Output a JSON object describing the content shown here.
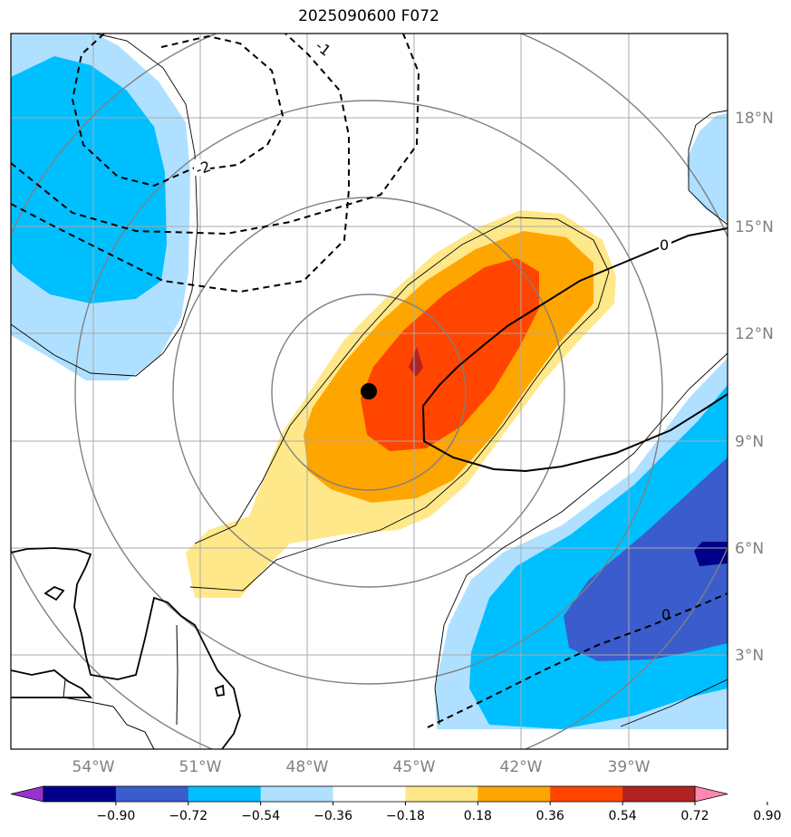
{
  "title": "2025090600 F072",
  "map": {
    "lon_labels": [
      "54°W",
      "51°W",
      "48°W",
      "45°W",
      "42°W",
      "39°W"
    ],
    "lat_labels": [
      "18°N",
      "15°N",
      "12°N",
      "9°N",
      "6°N",
      "3°N"
    ],
    "contour_labels": [
      "-1",
      "-2",
      "0",
      "0"
    ],
    "colors": {
      "land_outline": "#000000",
      "grid": "#aaaaaa",
      "rings": "#808080"
    }
  },
  "colorbar": {
    "labels": [
      "−0.90",
      "−0.72",
      "−0.54",
      "−0.36",
      "−0.18",
      "0.18",
      "0.36",
      "0.54",
      "0.72",
      "0.90"
    ],
    "colors": [
      "#9932cc",
      "#00008b",
      "#3a5ccc",
      "#00bfff",
      "#b0e0ff",
      "#ffffff",
      "#ffe88a",
      "#ffa500",
      "#ff4500",
      "#b22222",
      "#ff88b0"
    ]
  }
}
